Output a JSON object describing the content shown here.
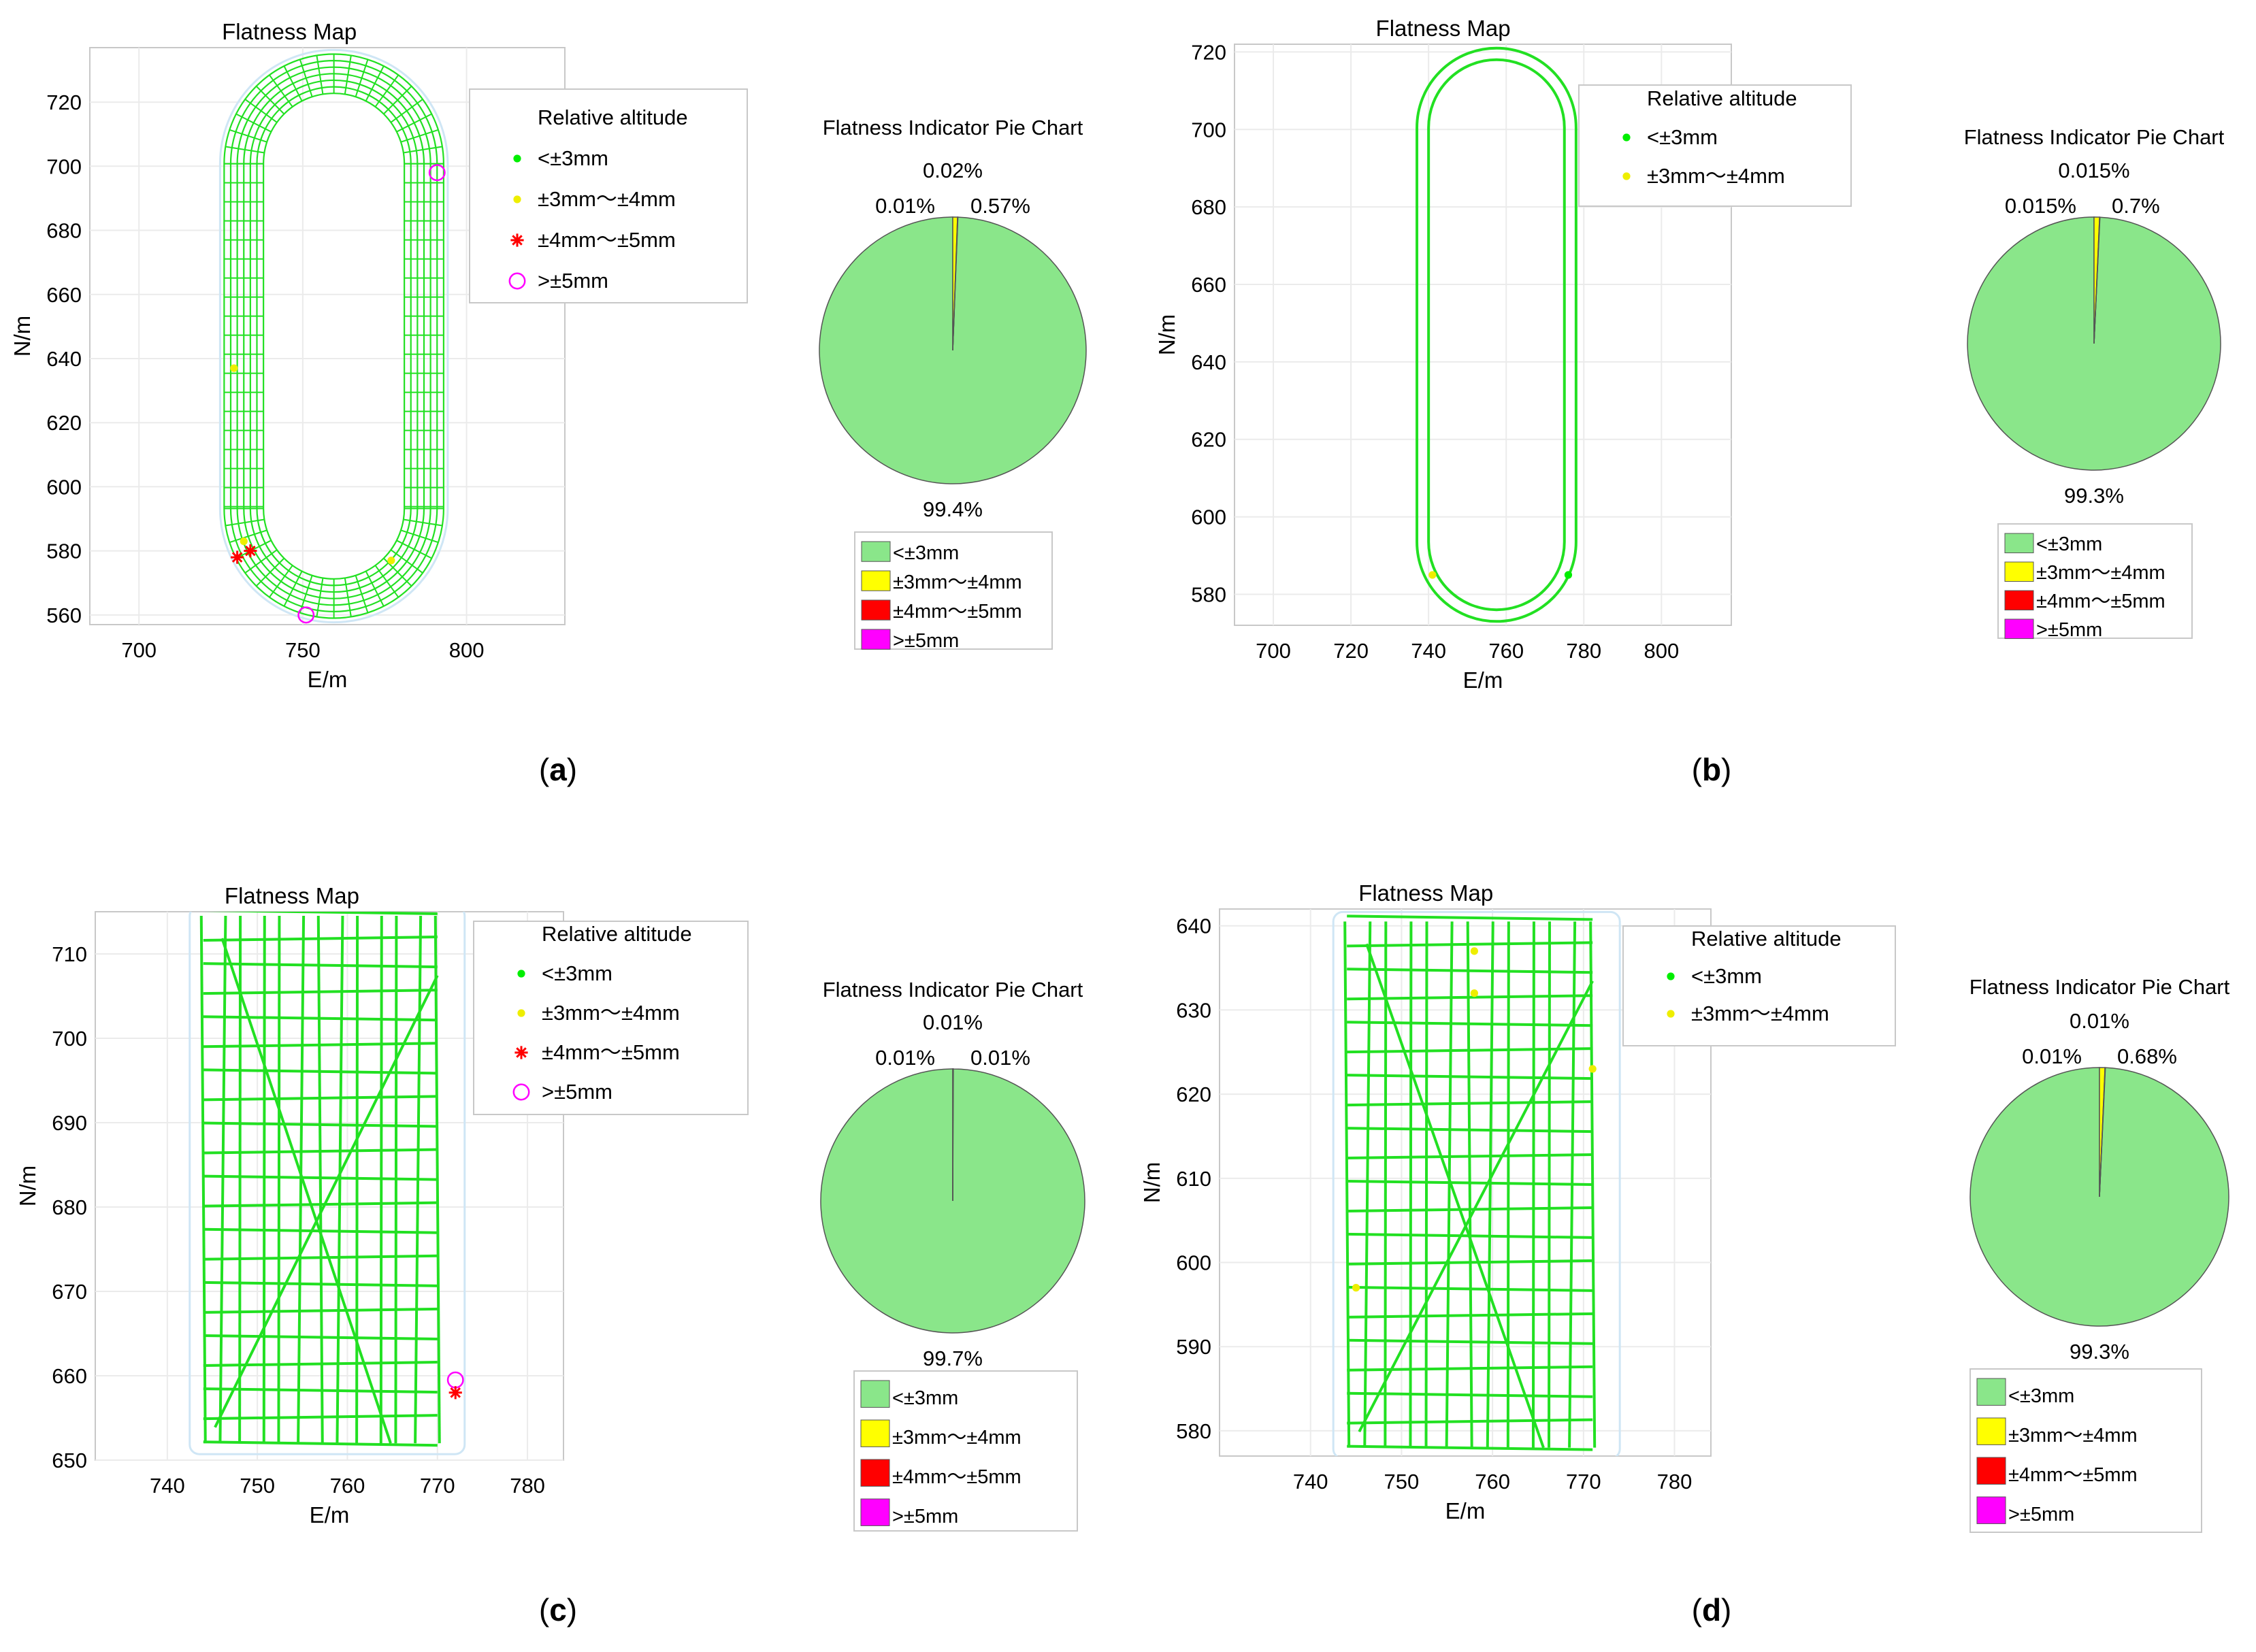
{
  "chart_data": [
    {
      "panel": "(a)",
      "map": {
        "type": "scatter",
        "title": "Flatness Map",
        "xlabel": "E/m",
        "ylabel": "N/m",
        "xlim": [
          685,
          830
        ],
        "ylim": [
          557,
          737
        ],
        "xticks": [
          700,
          750,
          800
        ],
        "yticks": [
          560,
          580,
          600,
          620,
          640,
          660,
          680,
          700,
          720
        ],
        "grid": true,
        "legend_location": "top-right",
        "legend": {
          "title": "Relative altitude",
          "entries": [
            {
              "label": "<±3mm",
              "marker": "dot",
              "color": "#00ee00"
            },
            {
              "label": "±3mm～±4mm",
              "marker": "dot",
              "color": "#eeee00"
            },
            {
              "label": "±4mm～±5mm",
              "marker": "star",
              "color": "#ff0000"
            },
            {
              "label": ">±5mm",
              "marker": "circle",
              "color": "#ff00ff"
            }
          ]
        },
        "track": {
          "shape": "stadium",
          "x_range": [
            726,
            793
          ],
          "y_range": [
            559,
            735
          ],
          "inner_offset": 12,
          "pattern": "race-track mesh of parallel passes"
        },
        "highlight_points": [
          {
            "x": 730,
            "y": 578,
            "class": "±4mm～±5mm"
          },
          {
            "x": 734,
            "y": 580,
            "class": "±4mm～±5mm"
          },
          {
            "x": 791,
            "y": 698,
            "class": ">±5mm"
          },
          {
            "x": 751,
            "y": 560,
            "class": ">±5mm"
          },
          {
            "x": 732,
            "y": 583,
            "class": "±3mm～±4mm"
          },
          {
            "x": 777,
            "y": 577,
            "class": "±3mm～±4mm"
          },
          {
            "x": 729,
            "y": 637,
            "class": "±3mm～±4mm"
          }
        ]
      },
      "pie": {
        "type": "pie",
        "title": "Flatness Indicator Pie Chart",
        "slices": [
          {
            "label": "<±3mm",
            "value": 99.4,
            "text": "99.4%",
            "color": "#8ae68a"
          },
          {
            "label": "±3mm～±4mm",
            "value": 0.57,
            "text": "0.57%",
            "color": "#ffff00"
          },
          {
            "label": "±4mm～±5mm",
            "value": 0.01,
            "text": "0.01%",
            "color": "#ff0000"
          },
          {
            "label": ">±5mm",
            "value": 0.02,
            "text": "0.02%",
            "color": "#ff00ff"
          }
        ],
        "legend_location": "bottom"
      }
    },
    {
      "panel": "(b)",
      "map": {
        "type": "scatter",
        "title": "Flatness Map",
        "xlabel": "E/m",
        "ylabel": "N/m",
        "xlim": [
          690,
          818
        ],
        "ylim": [
          572,
          722
        ],
        "xticks": [
          700,
          720,
          740,
          760,
          780,
          800
        ],
        "yticks": [
          580,
          600,
          620,
          640,
          660,
          680,
          700,
          720
        ],
        "grid": true,
        "legend_location": "top-right",
        "legend": {
          "title": "Relative altitude",
          "entries": [
            {
              "label": "<±3mm",
              "marker": "dot",
              "color": "#00ee00"
            },
            {
              "label": "±3mm～±4mm",
              "marker": "dot",
              "color": "#eeee00"
            }
          ]
        },
        "track": {
          "shape": "stadium",
          "x_range": [
            737,
            778
          ],
          "y_range": [
            573,
            721
          ],
          "inner_offset": 3,
          "pattern": "two parallel loops"
        },
        "highlight_points": [
          {
            "x": 741,
            "y": 585,
            "class": "±3mm～±4mm"
          },
          {
            "x": 776,
            "y": 585,
            "class": "<±3mm"
          }
        ]
      },
      "pie": {
        "type": "pie",
        "title": "Flatness Indicator Pie Chart",
        "slices": [
          {
            "label": "<±3mm",
            "value": 99.3,
            "text": "99.3%",
            "color": "#8ae68a"
          },
          {
            "label": "±3mm～±4mm",
            "value": 0.7,
            "text": "0.7%",
            "color": "#ffff00"
          },
          {
            "label": "±4mm～±5mm",
            "value": 0.015,
            "text": "0.015%",
            "color": "#ff0000"
          },
          {
            "label": ">±5mm",
            "value": 0.015,
            "text": "0.015%",
            "color": "#ff00ff"
          }
        ],
        "legend_location": "bottom"
      }
    },
    {
      "panel": "(c)",
      "map": {
        "type": "scatter",
        "title": "Flatness Map",
        "xlabel": "E/m",
        "ylabel": "N/m",
        "xlim": [
          732,
          784
        ],
        "ylim": [
          650,
          715
        ],
        "xticks": [
          740,
          750,
          760,
          770,
          780
        ],
        "yticks": [
          650,
          660,
          670,
          680,
          690,
          700,
          710
        ],
        "grid": true,
        "legend_location": "top-right",
        "legend": {
          "title": "Relative altitude",
          "entries": [
            {
              "label": "<±3mm",
              "marker": "dot",
              "color": "#00ee00"
            },
            {
              "label": "±3mm～±4mm",
              "marker": "dot",
              "color": "#eeee00"
            },
            {
              "label": "±4mm～±5mm",
              "marker": "star",
              "color": "#ff0000"
            },
            {
              "label": ">±5mm",
              "marker": "circle",
              "color": "#ff00ff"
            }
          ]
        },
        "track": {
          "shape": "grid",
          "x_range": [
            744,
            770
          ],
          "y_range": [
            652,
            715
          ],
          "pattern": "rectangular grid with diagonal passes"
        },
        "highlight_points": [
          {
            "x": 772,
            "y": 659.5,
            "class": ">±5mm"
          },
          {
            "x": 772,
            "y": 658,
            "class": "±4mm～±5mm"
          }
        ]
      },
      "pie": {
        "type": "pie",
        "title": "Flatness Indicator Pie Chart",
        "slices": [
          {
            "label": "<±3mm",
            "value": 99.7,
            "text": "99.7%",
            "color": "#8ae68a"
          },
          {
            "label": "±3mm～±4mm",
            "value": 0.01,
            "text": "0.01%",
            "color": "#ffff00"
          },
          {
            "label": "±4mm～±5mm",
            "value": 0.01,
            "text": "0.01%",
            "color": "#ff0000"
          },
          {
            "label": ">±5mm",
            "value": 0.01,
            "text": "0.01%",
            "color": "#ff00ff"
          }
        ],
        "legend_location": "bottom"
      }
    },
    {
      "panel": "(d)",
      "map": {
        "type": "scatter",
        "title": "Flatness Map",
        "xlabel": "E/m",
        "ylabel": "N/m",
        "xlim": [
          730,
          784
        ],
        "ylim": [
          577,
          642
        ],
        "xticks": [
          740,
          750,
          760,
          770,
          780
        ],
        "yticks": [
          580,
          590,
          600,
          610,
          620,
          630,
          640
        ],
        "grid": true,
        "legend_location": "top-right",
        "legend": {
          "title": "Relative altitude",
          "entries": [
            {
              "label": "<±3mm",
              "marker": "dot",
              "color": "#00ee00"
            },
            {
              "label": "±3mm～±4mm",
              "marker": "dot",
              "color": "#eeee00"
            }
          ]
        },
        "track": {
          "shape": "grid",
          "x_range": [
            744,
            771
          ],
          "y_range": [
            578,
            641
          ],
          "pattern": "rectangular grid with diagonal passes"
        },
        "highlight_points": [
          {
            "x": 745,
            "y": 597,
            "class": "±3mm～±4mm"
          },
          {
            "x": 771,
            "y": 623,
            "class": "±3mm～±4mm"
          },
          {
            "x": 758,
            "y": 637,
            "class": "±3mm～±4mm"
          },
          {
            "x": 758,
            "y": 632,
            "class": "±3mm～±4mm"
          }
        ]
      },
      "pie": {
        "type": "pie",
        "title": "Flatness Indicator Pie Chart",
        "slices": [
          {
            "label": "<±3mm",
            "value": 99.3,
            "text": "99.3%",
            "color": "#8ae68a"
          },
          {
            "label": "±3mm～±4mm",
            "value": 0.68,
            "text": "0.68%",
            "color": "#ffff00"
          },
          {
            "label": "±4mm～±5mm",
            "value": 0.01,
            "text": "0.01%",
            "color": "#ff0000"
          },
          {
            "label": ">±5mm",
            "value": 0.01,
            "text": "0.01%",
            "color": "#ff00ff"
          }
        ],
        "legend_location": "bottom"
      }
    }
  ]
}
